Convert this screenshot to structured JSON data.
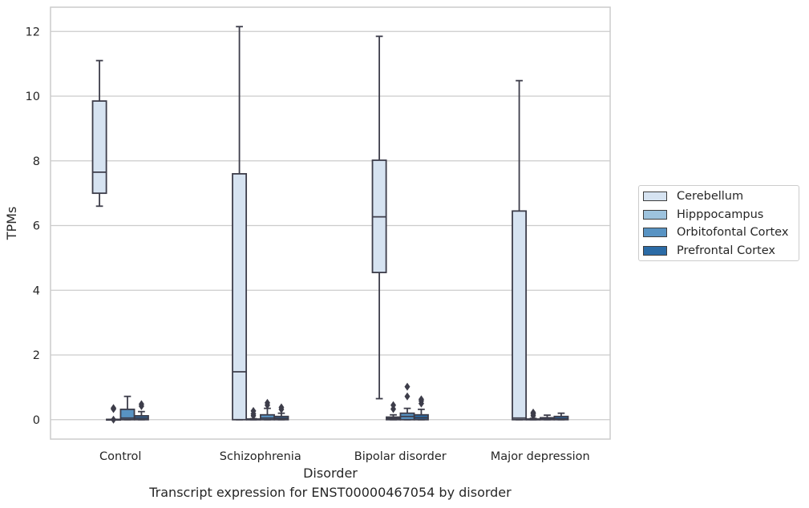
{
  "caption": "Transcript expression for ENST00000467054 by disorder",
  "chart_data": {
    "type": "box",
    "title": "",
    "xlabel": "Disorder",
    "ylabel": "TPMs",
    "ylim": [
      -0.6,
      12.75
    ],
    "yticks": [
      0,
      2,
      4,
      6,
      8,
      10,
      12
    ],
    "grid": true,
    "legend_placement": "outside-right",
    "categories": [
      "Control",
      "Schizophrenia",
      "Bipolar disorder",
      "Major depression"
    ],
    "series": [
      {
        "name": "Cerebellum",
        "color": "#d6e3f1",
        "boxes": [
          {
            "q1": 7.0,
            "median": 7.65,
            "q3": 9.85,
            "whislo": 6.6,
            "whishi": 11.1,
            "fliers": []
          },
          {
            "q1": 0.0,
            "median": 1.48,
            "q3": 7.6,
            "whislo": 0.0,
            "whishi": 12.15,
            "fliers": []
          },
          {
            "q1": 4.55,
            "median": 6.27,
            "q3": 8.02,
            "whislo": 0.65,
            "whishi": 11.85,
            "fliers": []
          },
          {
            "q1": 0.0,
            "median": 0.05,
            "q3": 6.45,
            "whislo": 0.0,
            "whishi": 10.48,
            "fliers": []
          }
        ]
      },
      {
        "name": "Hipppocampus",
        "color": "#9dc3de",
        "boxes": [
          {
            "q1": 0.0,
            "median": 0.0,
            "q3": 0.01,
            "whislo": 0.0,
            "whishi": 0.01,
            "fliers": [
              0.0,
              0.33,
              0.36
            ]
          },
          {
            "q1": 0.0,
            "median": 0.0,
            "q3": 0.02,
            "whislo": 0.0,
            "whishi": 0.03,
            "fliers": [
              0.12,
              0.18,
              0.27
            ]
          },
          {
            "q1": 0.0,
            "median": 0.04,
            "q3": 0.08,
            "whislo": 0.0,
            "whishi": 0.15,
            "fliers": [
              0.33,
              0.45
            ]
          },
          {
            "q1": 0.0,
            "median": 0.0,
            "q3": 0.02,
            "whislo": 0.0,
            "whishi": 0.04,
            "fliers": [
              0.12,
              0.18,
              0.22
            ]
          }
        ]
      },
      {
        "name": "Orbitofontal Cortex",
        "color": "#5893c3",
        "boxes": [
          {
            "q1": 0.0,
            "median": 0.05,
            "q3": 0.32,
            "whislo": 0.0,
            "whishi": 0.72,
            "fliers": []
          },
          {
            "q1": 0.0,
            "median": 0.05,
            "q3": 0.15,
            "whislo": 0.0,
            "whishi": 0.35,
            "fliers": [
              0.45,
              0.52
            ]
          },
          {
            "q1": 0.0,
            "median": 0.1,
            "q3": 0.2,
            "whislo": 0.0,
            "whishi": 0.35,
            "fliers": [
              0.72,
              1.02
            ]
          },
          {
            "q1": 0.0,
            "median": 0.02,
            "q3": 0.06,
            "whislo": 0.0,
            "whishi": 0.14,
            "fliers": []
          }
        ]
      },
      {
        "name": "Prefrontal Cortex",
        "color": "#2b6ba6",
        "boxes": [
          {
            "q1": 0.0,
            "median": 0.05,
            "q3": 0.12,
            "whislo": 0.0,
            "whishi": 0.25,
            "fliers": [
              0.42,
              0.48
            ]
          },
          {
            "q1": 0.0,
            "median": 0.04,
            "q3": 0.1,
            "whislo": 0.0,
            "whishi": 0.2,
            "fliers": [
              0.32,
              0.38
            ]
          },
          {
            "q1": 0.0,
            "median": 0.06,
            "q3": 0.15,
            "whislo": 0.0,
            "whishi": 0.32,
            "fliers": [
              0.5,
              0.58,
              0.63
            ]
          },
          {
            "q1": 0.0,
            "median": 0.03,
            "q3": 0.1,
            "whislo": 0.0,
            "whishi": 0.2,
            "fliers": []
          }
        ]
      }
    ]
  }
}
